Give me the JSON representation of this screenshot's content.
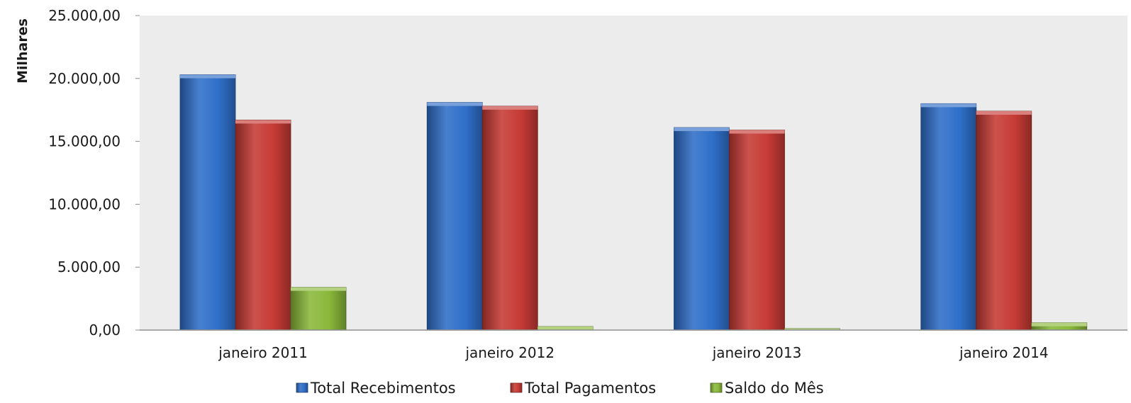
{
  "chart_data": {
    "type": "bar",
    "title": "",
    "xlabel": "",
    "ylabel": "Milhares",
    "ylim": [
      0,
      25000
    ],
    "ytick_values": [
      0,
      5000,
      10000,
      15000,
      20000,
      25000
    ],
    "ytick_labels": [
      "0,00",
      "5.000,00",
      "10.000,00",
      "15.000,00",
      "20.000,00",
      "25.000,00"
    ],
    "categories": [
      "janeiro 2011",
      "janeiro 2012",
      "janeiro 2013",
      "janeiro 2014"
    ],
    "series": [
      {
        "name": "Total Recebimentos",
        "color": "#2f6fc9",
        "values": [
          20300,
          18100,
          16100,
          18000
        ]
      },
      {
        "name": "Total Pagamentos",
        "color": "#c63a35",
        "values": [
          16700,
          17800,
          15900,
          17400
        ]
      },
      {
        "name": "Saldo do Mês",
        "color": "#8ab83a",
        "values": [
          3400,
          280,
          120,
          580
        ]
      }
    ],
    "grid": false,
    "legend_position": "bottom",
    "plot_background": "#ececec"
  }
}
